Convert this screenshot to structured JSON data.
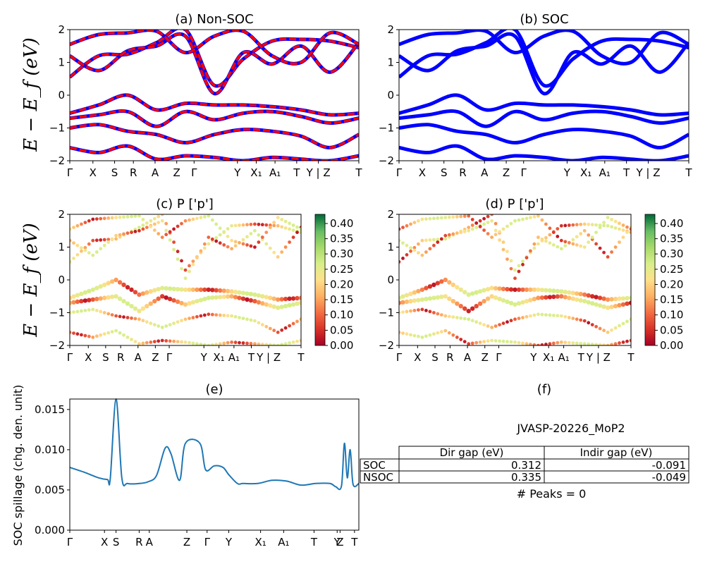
{
  "chart_data": [
    {
      "type": "line",
      "title": "(a) Non-SOC",
      "ylabel": "E − E_f (eV)",
      "ylim": [
        -2,
        2
      ],
      "yticks": [
        "2",
        "1",
        "0",
        "−1",
        "−2"
      ],
      "xticks": [
        "Γ",
        "X",
        "S",
        "R",
        "A",
        "Z",
        "Γ",
        "Y",
        "X₁",
        "A₁",
        "T",
        "Y | Z",
        "T"
      ],
      "series_colors": [
        "#ff0000",
        "#0000ff"
      ],
      "bands": [
        {
          "x": [
            0.0,
            0.1,
            0.2,
            0.3,
            0.4,
            0.5,
            0.6,
            0.7,
            0.8,
            0.9,
            1.0
          ],
          "y": [
            0.55,
            1.2,
            1.25,
            1.6,
            2.0,
            0.3,
            1.1,
            1.65,
            1.7,
            1.65,
            1.45
          ]
        },
        {
          "x": [
            0.0,
            0.1,
            0.2,
            0.3,
            0.4,
            0.5,
            0.6,
            0.7,
            0.8,
            0.9,
            1.0
          ],
          "y": [
            1.2,
            0.75,
            1.35,
            1.5,
            1.8,
            0.05,
            1.3,
            0.95,
            1.5,
            0.7,
            1.6
          ]
        },
        {
          "x": [
            0.0,
            0.1,
            0.2,
            0.3,
            0.4,
            0.5,
            0.6,
            0.7,
            0.8,
            0.9,
            1.0
          ],
          "y": [
            1.55,
            1.85,
            1.9,
            1.95,
            1.3,
            1.8,
            1.95,
            1.2,
            1.0,
            1.9,
            1.55
          ]
        },
        {
          "x": [
            0.0,
            0.1,
            0.2,
            0.3,
            0.4,
            0.5,
            0.6,
            0.7,
            0.8,
            0.9,
            1.0
          ],
          "y": [
            -0.55,
            -0.3,
            0.0,
            -0.45,
            -0.25,
            -0.3,
            -0.3,
            -0.35,
            -0.45,
            -0.6,
            -0.55
          ]
        },
        {
          "x": [
            0.0,
            0.1,
            0.2,
            0.3,
            0.4,
            0.5,
            0.6,
            0.7,
            0.8,
            0.9,
            1.0
          ],
          "y": [
            -0.7,
            -0.6,
            -0.5,
            -0.95,
            -0.5,
            -0.75,
            -0.55,
            -0.5,
            -0.65,
            -0.85,
            -0.7
          ]
        },
        {
          "x": [
            0.0,
            0.1,
            0.2,
            0.3,
            0.4,
            0.5,
            0.6,
            0.7,
            0.8,
            0.9,
            1.0
          ],
          "y": [
            -1.0,
            -0.9,
            -1.1,
            -1.2,
            -1.45,
            -1.2,
            -1.05,
            -1.1,
            -1.25,
            -1.6,
            -1.2
          ]
        },
        {
          "x": [
            0.0,
            0.1,
            0.2,
            0.3,
            0.4,
            0.5,
            0.6,
            0.7,
            0.8,
            0.9,
            1.0
          ],
          "y": [
            -1.6,
            -1.75,
            -1.55,
            -1.95,
            -1.85,
            -1.9,
            -2.0,
            -1.9,
            -1.95,
            -2.0,
            -1.85
          ]
        }
      ]
    },
    {
      "type": "line",
      "title": "(b) SOC",
      "ylim": [
        -2,
        2
      ],
      "yticks": [
        "2",
        "1",
        "0",
        "−1",
        "−2"
      ],
      "xticks": [
        "Γ",
        "X",
        "S",
        "R",
        "A",
        "Z",
        "Γ",
        "Y",
        "X₁",
        "A₁",
        "T",
        "Y | Z",
        "T"
      ],
      "series_colors": [
        "#0000ff"
      ],
      "bands": [
        {
          "x": [
            0.0,
            0.1,
            0.2,
            0.3,
            0.4,
            0.5,
            0.6,
            0.7,
            0.8,
            0.9,
            1.0
          ],
          "y": [
            0.55,
            1.2,
            1.25,
            1.6,
            2.0,
            0.3,
            1.1,
            1.65,
            1.7,
            1.65,
            1.45
          ]
        },
        {
          "x": [
            0.0,
            0.1,
            0.2,
            0.3,
            0.4,
            0.5,
            0.6,
            0.7,
            0.8,
            0.9,
            1.0
          ],
          "y": [
            1.2,
            0.75,
            1.35,
            1.5,
            1.8,
            0.05,
            1.3,
            0.95,
            1.5,
            0.7,
            1.6
          ]
        },
        {
          "x": [
            0.0,
            0.1,
            0.2,
            0.3,
            0.4,
            0.5,
            0.6,
            0.7,
            0.8,
            0.9,
            1.0
          ],
          "y": [
            1.55,
            1.85,
            1.9,
            1.95,
            1.3,
            1.8,
            1.95,
            1.2,
            1.0,
            1.9,
            1.55
          ]
        },
        {
          "x": [
            0.0,
            0.1,
            0.2,
            0.3,
            0.4,
            0.5,
            0.6,
            0.7,
            0.8,
            0.9,
            1.0
          ],
          "y": [
            -0.55,
            -0.3,
            0.0,
            -0.45,
            -0.25,
            -0.3,
            -0.3,
            -0.35,
            -0.45,
            -0.6,
            -0.55
          ]
        },
        {
          "x": [
            0.0,
            0.1,
            0.2,
            0.3,
            0.4,
            0.5,
            0.6,
            0.7,
            0.8,
            0.9,
            1.0
          ],
          "y": [
            -0.7,
            -0.6,
            -0.5,
            -0.95,
            -0.5,
            -0.75,
            -0.55,
            -0.5,
            -0.65,
            -0.85,
            -0.7
          ]
        },
        {
          "x": [
            0.0,
            0.1,
            0.2,
            0.3,
            0.4,
            0.5,
            0.6,
            0.7,
            0.8,
            0.9,
            1.0
          ],
          "y": [
            -1.0,
            -0.9,
            -1.1,
            -1.2,
            -1.45,
            -1.2,
            -1.05,
            -1.1,
            -1.25,
            -1.6,
            -1.2
          ]
        },
        {
          "x": [
            0.0,
            0.1,
            0.2,
            0.3,
            0.4,
            0.5,
            0.6,
            0.7,
            0.8,
            0.9,
            1.0
          ],
          "y": [
            -1.6,
            -1.75,
            -1.55,
            -1.95,
            -1.85,
            -1.9,
            -2.0,
            -1.9,
            -1.95,
            -2.0,
            -1.85
          ]
        }
      ]
    },
    {
      "type": "scatter",
      "title": "(c)  P ['p']",
      "ylabel": "E − E_f (eV)",
      "ylim": [
        -2,
        2
      ],
      "yticks": [
        "2",
        "1",
        "0",
        "−1",
        "−2"
      ],
      "xticks": [
        "Γ",
        "X",
        "S",
        "R",
        "A",
        "Z",
        "Γ",
        "Y",
        "X₁",
        "A₁",
        "T",
        "Y | Z",
        "T"
      ],
      "colorbar": {
        "ticks": [
          "0.40",
          "0.35",
          "0.30",
          "0.25",
          "0.20",
          "0.15",
          "0.10",
          "0.05",
          "0.00"
        ],
        "range": [
          0,
          0.43
        ]
      }
    },
    {
      "type": "scatter",
      "title": "(d) P ['p']",
      "ylim": [
        -2,
        2
      ],
      "yticks": [
        "2",
        "1",
        "0",
        "−1",
        "−2"
      ],
      "xticks": [
        "Γ",
        "X",
        "S",
        "R",
        "A",
        "Z",
        "Γ",
        "Y",
        "X₁",
        "A₁",
        "T",
        "Y | Z",
        "T"
      ],
      "colorbar": {
        "ticks": [
          "0.40",
          "0.35",
          "0.30",
          "0.25",
          "0.20",
          "0.15",
          "0.10",
          "0.05",
          "0.00"
        ],
        "range": [
          0,
          0.43
        ]
      }
    },
    {
      "type": "line",
      "title": "(e)",
      "ylabel": "SOC spillage (chg. den. unit)",
      "ylim": [
        0,
        0.0163
      ],
      "yticks": [
        "0.015",
        "0.010",
        "0.005",
        "0.000"
      ],
      "xticks": [
        "Γ",
        "X",
        "S",
        "R",
        "A",
        "Z",
        "Γ",
        "Y",
        "X₁",
        "A₁",
        "T",
        "Y",
        "Z",
        "T"
      ],
      "x": [
        0.0,
        0.05,
        0.1,
        0.13,
        0.14,
        0.16,
        0.18,
        0.2,
        0.24,
        0.27,
        0.3,
        0.33,
        0.35,
        0.38,
        0.4,
        0.45,
        0.47,
        0.5,
        0.53,
        0.55,
        0.58,
        0.6,
        0.65,
        0.7,
        0.75,
        0.8,
        0.85,
        0.9,
        0.92,
        0.94,
        0.95,
        0.96,
        0.97,
        0.98,
        1.0
      ],
      "values": [
        0.0078,
        0.0072,
        0.0065,
        0.0063,
        0.0064,
        0.0163,
        0.0065,
        0.0058,
        0.0058,
        0.006,
        0.0068,
        0.0102,
        0.0095,
        0.0062,
        0.0108,
        0.0108,
        0.0075,
        0.008,
        0.0078,
        0.0069,
        0.0058,
        0.0058,
        0.0058,
        0.0062,
        0.0061,
        0.0056,
        0.0058,
        0.0058,
        0.0054,
        0.0055,
        0.0108,
        0.0065,
        0.01,
        0.0057,
        0.0058
      ],
      "color": "#1f77b4"
    }
  ],
  "info_panel": {
    "title": "(f)",
    "material": "JVASP-20226_MoP2",
    "columns": [
      "Dir gap (eV)",
      "Indir gap (eV)"
    ],
    "rows": [
      {
        "label": "SOC",
        "dir": "0.312",
        "indir": "-0.091"
      },
      {
        "label": "NSOC",
        "dir": "0.335",
        "indir": "-0.049"
      }
    ],
    "peaks": "# Peaks = 0"
  }
}
